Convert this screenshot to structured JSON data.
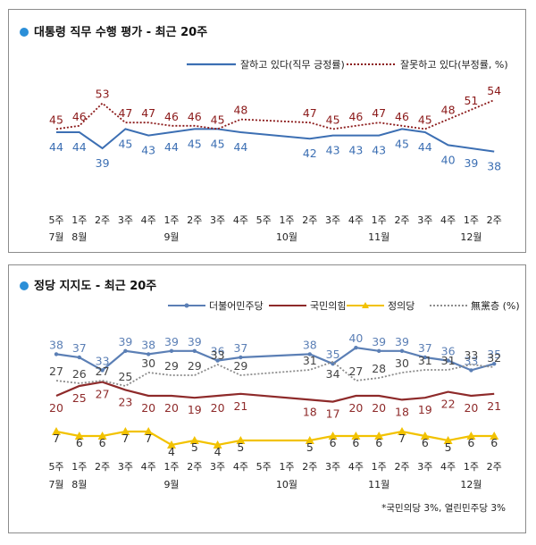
{
  "chart_data": [
    {
      "type": "line",
      "title": "대통령 직무 수행 평가 - 최근 20주",
      "x": [
        "5주",
        "1주",
        "2주",
        "3주",
        "4주",
        "1주",
        "2주",
        "3주",
        "4주",
        "5주",
        "1주",
        "2주",
        "3주",
        "4주",
        "1주",
        "2주",
        "3주",
        "4주",
        "1주",
        "2주"
      ],
      "month_labels": [
        {
          "label": "7월",
          "index": 0
        },
        {
          "label": "8월",
          "index": 1
        },
        {
          "label": "9월",
          "index": 5
        },
        {
          "label": "10월",
          "index": 10
        },
        {
          "label": "11월",
          "index": 14
        },
        {
          "label": "12월",
          "index": 18
        }
      ],
      "series": [
        {
          "name": "잘하고 있다(직무 긍정률)",
          "color": "#3c6fb3",
          "style": "solid",
          "values": [
            44,
            44,
            39,
            45,
            43,
            44,
            45,
            45,
            44,
            null,
            null,
            42,
            43,
            43,
            43,
            45,
            44,
            40,
            39,
            38
          ],
          "labels": [
            "44",
            "44",
            "39",
            "45",
            "43",
            "44",
            "45",
            "45",
            "44",
            "",
            "",
            "42",
            "43",
            "43",
            "43",
            "45",
            "44",
            "40",
            "39",
            "38"
          ]
        },
        {
          "name": "잘못하고 있다(부정률, %)",
          "color": "#8b1a1a",
          "style": "dotted",
          "values": [
            45,
            46,
            53,
            47,
            47,
            46,
            46,
            45,
            48,
            null,
            null,
            47,
            45,
            46,
            47,
            46,
            45,
            48,
            51,
            54
          ],
          "labels": [
            "45",
            "46",
            "53",
            "47",
            "47",
            "46",
            "46",
            "45",
            "48",
            "",
            "",
            "47",
            "45",
            "46",
            "47",
            "46",
            "45",
            "48",
            "51",
            "54"
          ]
        }
      ]
    },
    {
      "type": "line",
      "title": "정당 지지도 - 최근 20주",
      "x": [
        "5주",
        "1주",
        "2주",
        "3주",
        "4주",
        "1주",
        "2주",
        "3주",
        "4주",
        "5주",
        "1주",
        "2주",
        "3주",
        "4주",
        "1주",
        "2주",
        "3주",
        "4주",
        "1주",
        "2주"
      ],
      "month_labels": [
        {
          "label": "7월",
          "index": 0
        },
        {
          "label": "8월",
          "index": 1
        },
        {
          "label": "9월",
          "index": 5
        },
        {
          "label": "10월",
          "index": 10
        },
        {
          "label": "11월",
          "index": 14
        },
        {
          "label": "12월",
          "index": 18
        }
      ],
      "series": [
        {
          "name": "더불어민주당",
          "color": "#5b7fb5",
          "style": "solid-marker",
          "values": [
            38,
            37,
            33,
            39,
            38,
            39,
            39,
            36,
            37,
            null,
            null,
            38,
            35,
            40,
            39,
            39,
            37,
            36,
            33,
            35
          ],
          "labels": [
            "38",
            "37",
            "33",
            "39",
            "38",
            "39",
            "39",
            "36",
            "37",
            "",
            "",
            "38",
            "35",
            "40",
            "39",
            "39",
            "37",
            "36",
            "33",
            "35"
          ]
        },
        {
          "name": "국민의힘",
          "color": "#8e2a2a",
          "style": "solid",
          "values": [
            20,
            25,
            27,
            23,
            20,
            20,
            19,
            20,
            21,
            null,
            null,
            18,
            17,
            20,
            20,
            18,
            19,
            22,
            20,
            21
          ],
          "labels": [
            "20",
            "25",
            "27",
            "23",
            "20",
            "20",
            "19",
            "20",
            "21",
            "",
            "",
            "18",
            "17",
            "20",
            "20",
            "18",
            "19",
            "22",
            "20",
            "21"
          ]
        },
        {
          "name": "정의당",
          "color": "#f2c200",
          "style": "solid-marker",
          "values": [
            7,
            6,
            6,
            7,
            7,
            4,
            5,
            4,
            5,
            null,
            null,
            5,
            6,
            6,
            6,
            7,
            6,
            5,
            6,
            6
          ],
          "labels": [
            "7",
            "6",
            "6",
            "7",
            "7",
            "4",
            "5",
            "4",
            "5",
            "",
            "",
            "5",
            "6",
            "6",
            "6",
            "7",
            "6",
            "5",
            "6",
            "6"
          ]
        },
        {
          "name": "無黨층 (%)",
          "color": "#8c8c8c",
          "style": "dotted",
          "values": [
            27,
            26,
            27,
            25,
            30,
            29,
            29,
            33,
            29,
            null,
            null,
            31,
            34,
            27,
            28,
            30,
            31,
            31,
            33,
            32
          ],
          "labels": [
            "27",
            "26",
            "27",
            "25",
            "30",
            "29",
            "29",
            "33",
            "29",
            "",
            "",
            "31",
            "34",
            "27",
            "28",
            "30",
            "31",
            "31",
            "33",
            "32"
          ]
        }
      ],
      "footnote": "*국민의당 3%, 열린민주당 3%"
    }
  ]
}
